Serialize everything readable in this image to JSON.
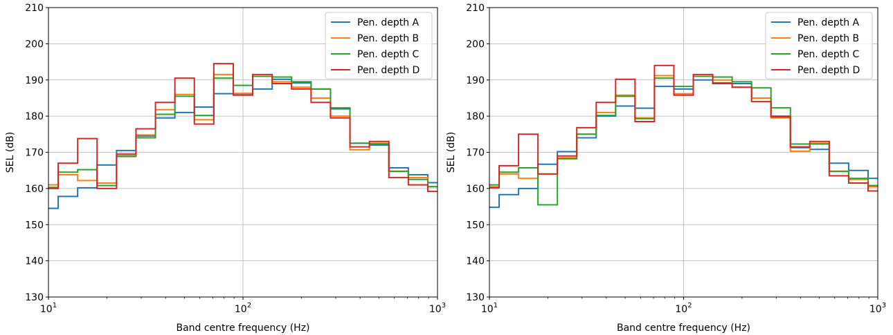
{
  "colors": {
    "Pen. depth A": "#1f77b4",
    "Pen. depth B": "#ff7f0e",
    "Pen. depth C": "#2ca02c",
    "Pen. depth D": "#d62728"
  },
  "chart_data": [
    {
      "type": "line",
      "step": "post",
      "xscale": "log",
      "xlim": [
        10,
        1000
      ],
      "ylim": [
        130,
        210
      ],
      "yticks": [
        130,
        140,
        150,
        160,
        170,
        180,
        190,
        200,
        210
      ],
      "xticks": [
        10,
        100,
        1000
      ],
      "xtick_labels": [
        {
          "base": "10",
          "exp": "1"
        },
        {
          "base": "10",
          "exp": "2"
        },
        {
          "base": "10",
          "exp": "3"
        }
      ],
      "grid": "major",
      "legend": "upper right",
      "xlabel": "Band centre frequency (Hz)",
      "ylabel": "SEL (dB)",
      "x": [
        10,
        11.22,
        14.13,
        17.78,
        22.39,
        28.18,
        35.48,
        44.67,
        56.23,
        70.79,
        89.13,
        112.2,
        141.3,
        177.8,
        223.9,
        281.8,
        354.8,
        446.7,
        562.3,
        707.9,
        891.3
      ],
      "series": [
        {
          "name": "Pen. depth A",
          "values": [
            154.5,
            157.8,
            160.2,
            166.5,
            170.5,
            174.5,
            179.5,
            181.0,
            182.5,
            186.2,
            186.2,
            187.5,
            190.2,
            189.2,
            187.5,
            182.0,
            172.5,
            172.0,
            165.7,
            163.8,
            161.6
          ]
        },
        {
          "name": "Pen. depth B",
          "values": [
            161.0,
            163.8,
            162.2,
            161.5,
            168.8,
            174.8,
            181.8,
            186.0,
            179.0,
            191.5,
            186.3,
            191.0,
            189.5,
            188.0,
            185.0,
            180.0,
            170.7,
            172.5,
            164.8,
            163.0,
            160.5
          ]
        },
        {
          "name": "Pen. depth C",
          "values": [
            160.3,
            164.5,
            165.2,
            160.8,
            169.0,
            174.0,
            180.5,
            185.5,
            180.2,
            190.5,
            188.5,
            191.0,
            190.8,
            189.5,
            187.5,
            182.3,
            172.5,
            172.3,
            164.7,
            162.5,
            160.5
          ]
        },
        {
          "name": "Pen. depth D",
          "values": [
            160.0,
            167.0,
            173.8,
            160.0,
            169.5,
            176.5,
            183.8,
            190.5,
            177.8,
            194.5,
            185.8,
            191.5,
            189.0,
            187.5,
            183.8,
            179.5,
            171.5,
            173.0,
            163.0,
            161.0,
            159.2
          ]
        }
      ]
    },
    {
      "type": "line",
      "step": "post",
      "xscale": "log",
      "xlim": [
        10,
        1000
      ],
      "ylim": [
        130,
        210
      ],
      "yticks": [
        130,
        140,
        150,
        160,
        170,
        180,
        190,
        200,
        210
      ],
      "xticks": [
        10,
        100,
        1000
      ],
      "xtick_labels": [
        {
          "base": "10",
          "exp": "1"
        },
        {
          "base": "10",
          "exp": "2"
        },
        {
          "base": "10",
          "exp": "3"
        }
      ],
      "grid": "major",
      "legend": "upper right",
      "xlabel": "Band centre frequency (Hz)",
      "ylabel": "SEL (dB)",
      "x": [
        10,
        11.22,
        14.13,
        17.78,
        22.39,
        28.18,
        35.48,
        44.67,
        56.23,
        70.79,
        89.13,
        112.2,
        141.3,
        177.8,
        223.9,
        281.8,
        354.8,
        446.7,
        562.3,
        707.9,
        891.3
      ],
      "series": [
        {
          "name": "Pen. depth A",
          "values": [
            154.8,
            158.3,
            160.0,
            166.7,
            170.2,
            174.0,
            180.0,
            182.8,
            182.2,
            188.2,
            187.5,
            190.0,
            189.2,
            189.0,
            185.0,
            180.0,
            171.3,
            170.8,
            167.0,
            165.0,
            162.8
          ]
        },
        {
          "name": "Pen. depth B",
          "values": [
            160.5,
            164.0,
            162.8,
            164.0,
            168.5,
            175.0,
            181.0,
            185.8,
            179.5,
            191.2,
            186.2,
            191.0,
            190.0,
            188.0,
            185.0,
            179.5,
            170.3,
            172.5,
            164.8,
            162.5,
            160.5
          ]
        },
        {
          "name": "Pen. depth C",
          "values": [
            161.0,
            164.5,
            165.7,
            155.5,
            168.2,
            175.0,
            180.2,
            185.5,
            179.3,
            190.5,
            188.2,
            191.0,
            190.8,
            189.5,
            187.8,
            182.3,
            172.3,
            172.3,
            164.7,
            162.8,
            160.8
          ]
        },
        {
          "name": "Pen. depth D",
          "values": [
            160.2,
            166.3,
            175.0,
            164.0,
            169.0,
            176.8,
            183.8,
            190.2,
            178.5,
            194.0,
            185.8,
            191.5,
            189.0,
            188.0,
            184.0,
            179.8,
            171.5,
            173.0,
            163.5,
            161.5,
            159.3
          ]
        }
      ]
    }
  ]
}
